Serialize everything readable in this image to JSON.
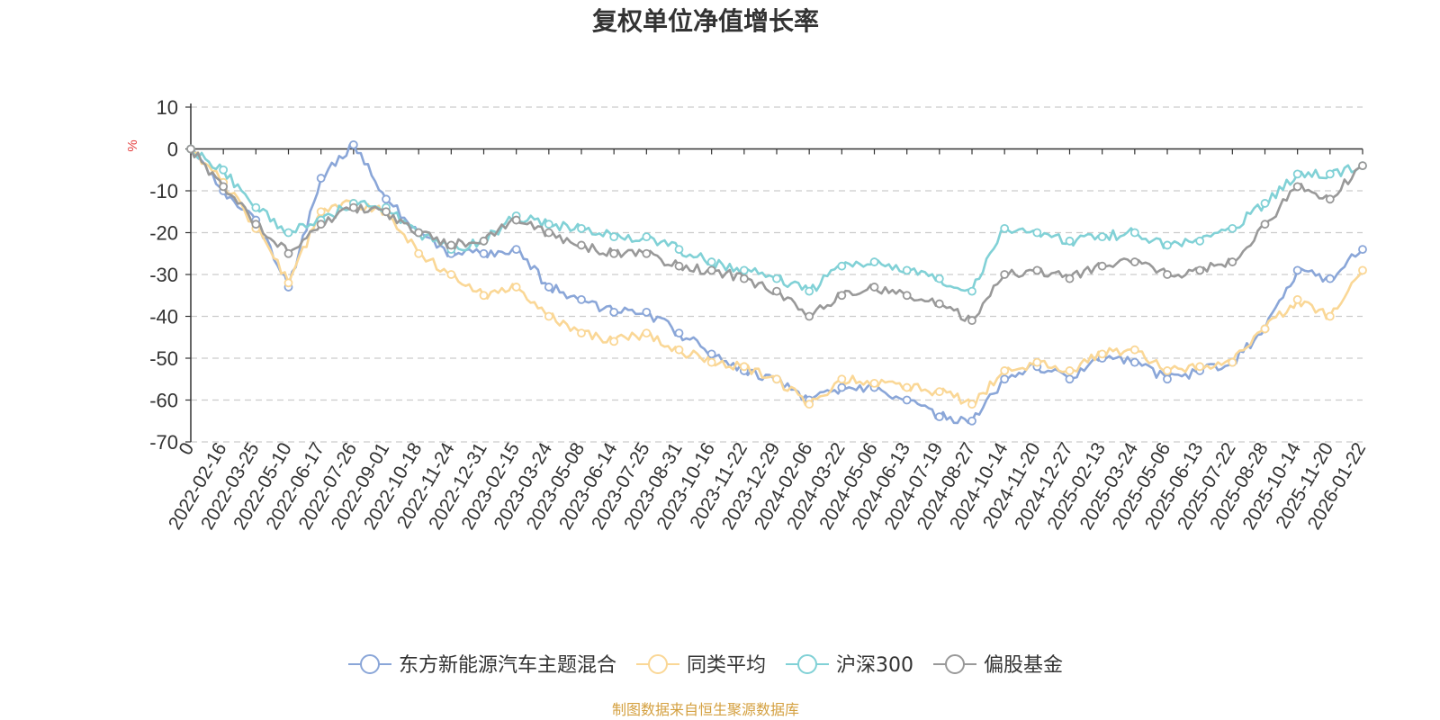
{
  "chart_data": {
    "type": "line",
    "title": "复权单位净值增长率",
    "ylabel": "%",
    "xlabel": "",
    "ylim": [
      -70,
      10
    ],
    "yticks": [
      10,
      0,
      -10,
      -20,
      -30,
      -40,
      -50,
      -60,
      -70
    ],
    "grid": true,
    "legend_position": "bottom-center",
    "source": "制图数据来自恒生聚源数据库",
    "x": [
      "0",
      "2022-02-16",
      "2022-03-25",
      "2022-05-10",
      "2022-06-17",
      "2022-07-26",
      "2022-09-01",
      "2022-10-18",
      "2022-11-24",
      "2022-12-31",
      "2023-02-15",
      "2023-03-24",
      "2023-05-08",
      "2023-06-14",
      "2023-07-25",
      "2023-08-31",
      "2023-10-16",
      "2023-11-22",
      "2023-12-29",
      "2024-02-06",
      "2024-03-22",
      "2024-05-06",
      "2024-06-13",
      "2024-07-19",
      "2024-08-27",
      "2024-10-14",
      "2024-11-20",
      "2024-12-27",
      "2025-02-13",
      "2025-03-24",
      "2025-05-06",
      "2025-06-13",
      "2025-07-22",
      "2025-08-28",
      "2025-10-14",
      "2025-11-20",
      "2026-01-22"
    ],
    "series": [
      {
        "name": "东方新能源汽车主题混合",
        "color": "#8aa6d8",
        "values": [
          0,
          -10,
          -17,
          -33,
          -7,
          1,
          -12,
          -20,
          -25,
          -25,
          -24,
          -33,
          -36,
          -39,
          -39,
          -44,
          -49,
          -53,
          -55,
          -60,
          -57,
          -57,
          -60,
          -64,
          -65,
          -55,
          -52,
          -55,
          -50,
          -51,
          -55,
          -53,
          -51,
          -43,
          -29,
          -31,
          -24
        ]
      },
      {
        "name": "同类平均",
        "color": "#fad796",
        "values": [
          0,
          -8,
          -19,
          -32,
          -15,
          -13,
          -15,
          -25,
          -30,
          -35,
          -33,
          -40,
          -44,
          -46,
          -44,
          -48,
          -51,
          -52,
          -55,
          -61,
          -55,
          -56,
          -57,
          -58,
          -61,
          -53,
          -51,
          -53,
          -49,
          -48,
          -53,
          -52,
          -51,
          -43,
          -36,
          -40,
          -29
        ]
      },
      {
        "name": "沪深300",
        "color": "#81d1d6",
        "values": [
          0,
          -5,
          -14,
          -20,
          -17,
          -13,
          -14,
          -20,
          -24,
          -22,
          -16,
          -18,
          -19,
          -21,
          -21,
          -24,
          -27,
          -29,
          -31,
          -34,
          -28,
          -27,
          -29,
          -31,
          -34,
          -19,
          -20,
          -22,
          -21,
          -20,
          -23,
          -22,
          -19,
          -13,
          -6,
          -6,
          -4
        ]
      },
      {
        "name": "偏股基金",
        "color": "#999999",
        "values": [
          0,
          -9,
          -18,
          -25,
          -18,
          -14,
          -15,
          -20,
          -23,
          -22,
          -17,
          -20,
          -23,
          -25,
          -25,
          -28,
          -29,
          -31,
          -34,
          -40,
          -35,
          -33,
          -35,
          -37,
          -41,
          -30,
          -29,
          -31,
          -28,
          -27,
          -30,
          -29,
          -27,
          -18,
          -9,
          -12,
          -4
        ]
      }
    ]
  }
}
